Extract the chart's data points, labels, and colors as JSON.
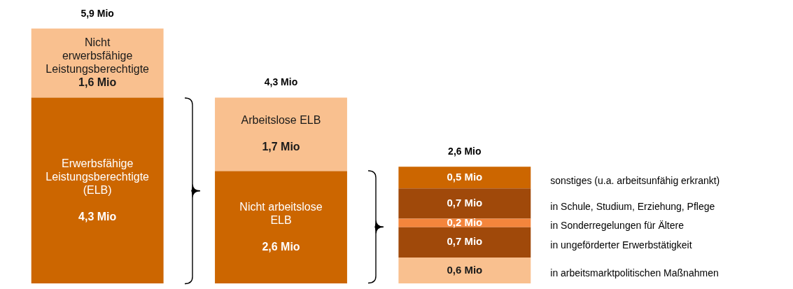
{
  "chart_data": {
    "type": "bar",
    "stacked": true,
    "categories": [
      null,
      null,
      null
    ],
    "series": [
      {
        "colors": [
          "#cc6600",
          "#cc6600",
          "#f9c08f"
        ],
        "values": [
          4.3,
          2.6,
          0.6
        ],
        "value_labels": [
          "Erwerbsfähige\nLeistungsberechtigte\n(ELB)\n\n4,3 Mio",
          "Nicht arbeitslose\nELB\n\n2,6 Mio",
          "0,6 Mio"
        ]
      },
      {
        "colors": [
          "#f9c08f",
          "#f9c08f",
          "#a0490a"
        ],
        "values": [
          1.6,
          1.7,
          0.7
        ],
        "value_labels": [
          "Nicht\nerwerbsfähige\nLeistungsberechtigte\n1,6 Mio",
          "Arbeitslose ELB\n\n1,7 Mio",
          "0,7 Mio"
        ]
      },
      {
        "colors": [
          null,
          null,
          "#f4853c"
        ],
        "values": [
          null,
          null,
          0.2
        ],
        "value_labels": [
          null,
          null,
          "0,2 Mio"
        ]
      },
      {
        "colors": [
          null,
          null,
          "#a0490a"
        ],
        "values": [
          null,
          null,
          0.7
        ],
        "value_labels": [
          null,
          null,
          "0,7 Mio"
        ]
      },
      {
        "colors": [
          null,
          null,
          "#cc6600"
        ],
        "values": [
          null,
          null,
          0.5
        ],
        "value_labels": [
          null,
          null,
          "0,5 Mio"
        ]
      }
    ],
    "totals": [
      "5,9 Mio",
      "4,3 Mio",
      "2,6 Mio"
    ],
    "annotations": [
      "in arbeitsmarktpolitischen Maßnahmen",
      "in ungeförderter Erwerbstätigkeit",
      "in Sonderregelungen für Ältere",
      "in Schule, Studium, Erziehung, Pflege",
      "sonstiges (u.a. arbeitsunfähig erkrankt)"
    ],
    "grid": false,
    "legend": false
  }
}
